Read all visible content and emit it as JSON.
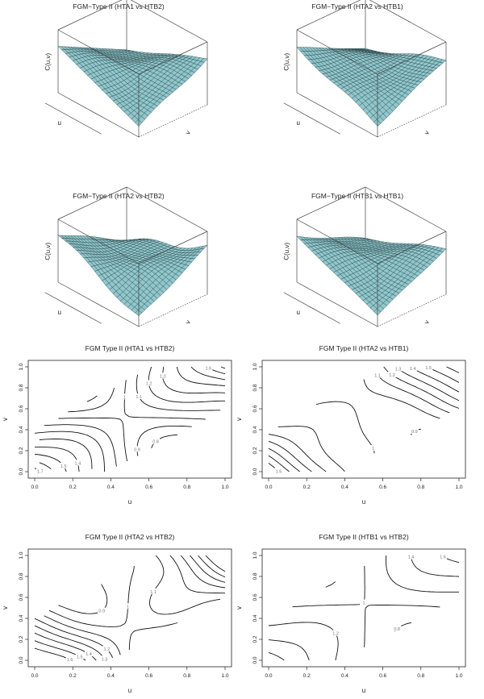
{
  "figure": {
    "surfaces": [
      {
        "title": "FGM−Type II (HTA1 vs HTB2)",
        "x_label": "u",
        "y_label": "v",
        "z_label": "C(u,v)"
      },
      {
        "title": "FGM−Type II (HTA2 vs HTB1)",
        "x_label": "u",
        "y_label": "v",
        "z_label": "C(u,v)"
      },
      {
        "title": "FGM−Type II (HTA2 vs HTB2)",
        "x_label": "u",
        "y_label": "v",
        "z_label": "C(u,v)"
      },
      {
        "title": "FGM−Type II (HTB1 vs HTB1)",
        "x_label": "u",
        "y_label": "v",
        "z_label": "C(u,v)"
      }
    ],
    "contours": [
      {
        "title": "FGM Type II (HTA1 vs HTB2)",
        "x_label": "u",
        "y_label": "v"
      },
      {
        "title": "FGM Type II (HTA2 vs HTB1)",
        "x_label": "u",
        "y_label": "v"
      },
      {
        "title": "FGM Type II (HTA2 vs HTB2)",
        "x_label": "u",
        "y_label": "v"
      },
      {
        "title": "FGM Type II (HTB1 vs HTB2)",
        "x_label": "u",
        "y_label": "v"
      }
    ]
  },
  "chart_data": [
    {
      "type": "surface",
      "title": "FGM−Type II (HTA1 vs HTB2)",
      "xlabel": "u",
      "ylabel": "v",
      "zlabel": "C(u,v)"
    },
    {
      "type": "surface",
      "title": "FGM−Type II (HTA2 vs HTB1)",
      "xlabel": "u",
      "ylabel": "v",
      "zlabel": "C(u,v)"
    },
    {
      "type": "surface",
      "title": "FGM−Type II (HTA2 vs HTB2)",
      "xlabel": "u",
      "ylabel": "v",
      "zlabel": "C(u,v)"
    },
    {
      "type": "surface",
      "title": "FGM−Type II (HTB1 vs HTB1)",
      "xlabel": "u",
      "ylabel": "v",
      "zlabel": "C(u,v)"
    },
    {
      "type": "contour",
      "title": "FGM Type II (HTA1 vs HTB2)",
      "xlabel": "u",
      "ylabel": "v",
      "xlim": [
        0,
        1
      ],
      "ylim": [
        0,
        1
      ],
      "xticks": [
        "0.0",
        "0.2",
        "0.4",
        "0.6",
        "0.8",
        "1.0"
      ],
      "yticks": [
        "0.0",
        "0.2",
        "0.4",
        "0.6",
        "0.8",
        "1.0"
      ],
      "contour_levels": [
        0.8,
        0.9,
        1,
        1.1,
        1.2,
        1.3,
        1.4,
        1.5,
        1.6,
        1.7
      ]
    },
    {
      "type": "contour",
      "title": "FGM Type II (HTA2 vs HTB1)",
      "xlabel": "u",
      "ylabel": "v",
      "xlim": [
        0,
        1
      ],
      "ylim": [
        0,
        1
      ],
      "xticks": [
        "0.0",
        "0.2",
        "0.4",
        "0.6",
        "0.8",
        "1.0"
      ],
      "yticks": [
        "0.0",
        "0.2",
        "0.4",
        "0.6",
        "0.8",
        "1.0"
      ],
      "contour_levels": [
        0.9,
        1,
        1.1,
        1.2,
        1.3,
        1.4,
        1.5,
        1.6
      ]
    },
    {
      "type": "contour",
      "title": "FGM Type II (HTA2 vs HTB2)",
      "xlabel": "u",
      "ylabel": "v",
      "xlim": [
        0,
        1
      ],
      "ylim": [
        0,
        1
      ],
      "xticks": [
        "0.0",
        "0.2",
        "0.4",
        "0.6",
        "0.8",
        "1.0"
      ],
      "yticks": [
        "0.0",
        "0.2",
        "0.4",
        "0.6",
        "0.8",
        "1.0"
      ],
      "contour_levels": [
        0.7,
        0.8,
        0.9,
        1,
        1.1,
        1.2,
        1.3,
        1.4,
        1.5,
        1.6
      ]
    },
    {
      "type": "contour",
      "title": "FGM Type II (HTB1 vs HTB2)",
      "xlabel": "u",
      "ylabel": "v",
      "xlim": [
        0,
        1
      ],
      "ylim": [
        0,
        1
      ],
      "xticks": [
        "0.0",
        "0.2",
        "0.4",
        "0.6",
        "0.8",
        "1.0"
      ],
      "yticks": [
        "0.0",
        "0.2",
        "0.4",
        "0.6",
        "0.8",
        "1.0"
      ],
      "contour_levels": [
        0.8,
        1,
        1.2,
        1.4,
        1.6
      ]
    }
  ]
}
